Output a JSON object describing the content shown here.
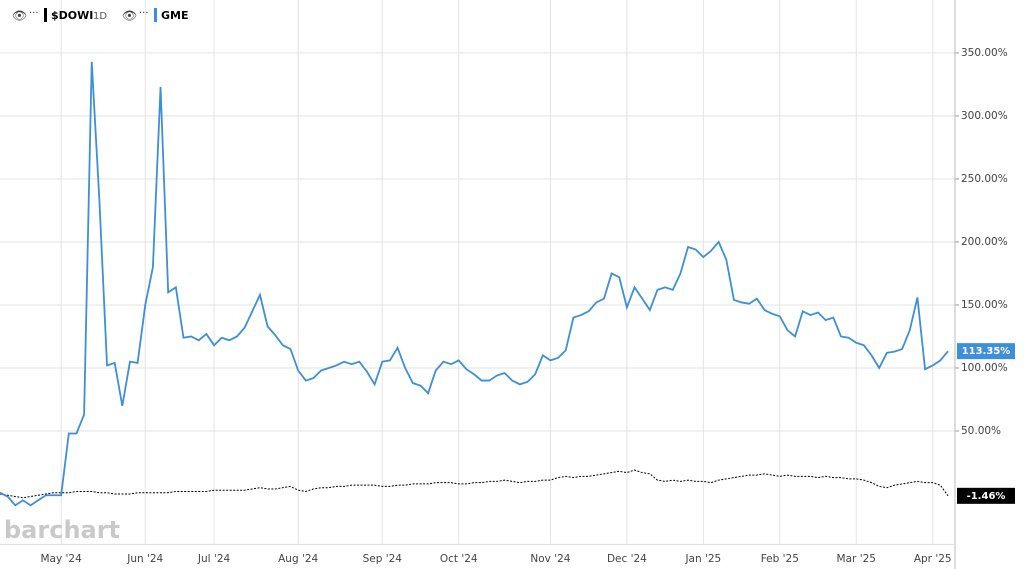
{
  "chart_data": {
    "type": "line",
    "interval": "1D",
    "watermark": "barchart",
    "categories": [
      null,
      null,
      null,
      null,
      null,
      null,
      null,
      null,
      "May '24",
      null,
      null,
      null,
      null,
      null,
      null,
      null,
      null,
      null,
      null,
      "Jun '24",
      null,
      null,
      null,
      null,
      null,
      null,
      null,
      null,
      "Jul '24",
      null,
      null,
      null,
      null,
      null,
      null,
      null,
      null,
      null,
      null,
      "Aug '24",
      null,
      null,
      null,
      null,
      null,
      null,
      null,
      null,
      null,
      null,
      "Sep '24",
      null,
      null,
      null,
      null,
      null,
      null,
      null,
      null,
      null,
      "Oct '24",
      null,
      null,
      null,
      null,
      null,
      null,
      null,
      null,
      null,
      null,
      null,
      "Nov '24",
      null,
      null,
      null,
      null,
      null,
      null,
      null,
      null,
      null,
      "Dec '24",
      null,
      null,
      null,
      null,
      null,
      null,
      null,
      null,
      null,
      "Jan '25",
      null,
      null,
      null,
      null,
      null,
      null,
      null,
      null,
      null,
      "Feb '25",
      null,
      null,
      null,
      null,
      null,
      null,
      null,
      null,
      null,
      "Mar '25",
      null,
      null,
      null,
      null,
      null,
      null,
      null,
      null,
      null,
      "Apr '25",
      null,
      null
    ],
    "series": [
      {
        "name": "$DOWI",
        "color": "#000000",
        "dashed": true,
        "values": [
          0,
          -1,
          -2,
          -3,
          -2,
          -1,
          0,
          1,
          1,
          1,
          2,
          2,
          2,
          1,
          1,
          0,
          0,
          0,
          1,
          1,
          1,
          1,
          1,
          2,
          2,
          2,
          2,
          2,
          3,
          3,
          3,
          3,
          3,
          4,
          5,
          4,
          4,
          5,
          6,
          3,
          2,
          4,
          5,
          5,
          6,
          6,
          7,
          7,
          7,
          7,
          6,
          6,
          7,
          7,
          8,
          8,
          8,
          9,
          9,
          9,
          8,
          8,
          9,
          9,
          10,
          10,
          11,
          10,
          9,
          10,
          10,
          11,
          11,
          13,
          14,
          13,
          14,
          14,
          15,
          16,
          17,
          18,
          17,
          19,
          17,
          16,
          11,
          10,
          11,
          10,
          11,
          10,
          10,
          9,
          11,
          12,
          13,
          14,
          15,
          15,
          16,
          15,
          14,
          15,
          14,
          14,
          14,
          13,
          14,
          13,
          13,
          12,
          12,
          11,
          9,
          6,
          5,
          7,
          8,
          9,
          10,
          9,
          9,
          7,
          -1.46
        ],
        "value_labels": {
          "124": "-1.46%"
        }
      },
      {
        "name": "GME",
        "color": "#3d8fd9",
        "dashed": false,
        "values": [
          1,
          -2,
          -9,
          -5,
          -9,
          -5,
          -1,
          -1,
          -1,
          48,
          48,
          63,
          343,
          233,
          102,
          104,
          70,
          105,
          104,
          150,
          180,
          323,
          160,
          164,
          124,
          125,
          122,
          127,
          118,
          124,
          122,
          125,
          132,
          145,
          158,
          133,
          126,
          118,
          115,
          98,
          90,
          92,
          98,
          100,
          102,
          105,
          103,
          105,
          97,
          87,
          105,
          106,
          116,
          100,
          88,
          86,
          80,
          98,
          105,
          103,
          106,
          99,
          95,
          90,
          90,
          94,
          96,
          90,
          87,
          89,
          95,
          110,
          106,
          108,
          114,
          140,
          142,
          145,
          152,
          155,
          175,
          172,
          148,
          164,
          155,
          146,
          162,
          164,
          162,
          175,
          196,
          194,
          188,
          193,
          200,
          186,
          154,
          152,
          151,
          155,
          146,
          143,
          141,
          130,
          125,
          145,
          142,
          144,
          138,
          140,
          125,
          124,
          120,
          118,
          110,
          100,
          112,
          113,
          115,
          130,
          156,
          99,
          102,
          106,
          113.35
        ],
        "value_labels": {
          "124": "113.35%"
        }
      }
    ],
    "ylim": [
      -40,
      392
    ],
    "yticks": [
      {
        "value": 50,
        "label": "50.00%"
      },
      {
        "value": 100,
        "label": "100.00%"
      },
      {
        "value": 150,
        "label": "150.00%"
      },
      {
        "value": 200,
        "label": "200.00%"
      },
      {
        "value": 250,
        "label": "250.00%"
      },
      {
        "value": 300,
        "label": "300.00%"
      },
      {
        "value": 350,
        "label": "350.00%"
      }
    ],
    "grid": true
  }
}
